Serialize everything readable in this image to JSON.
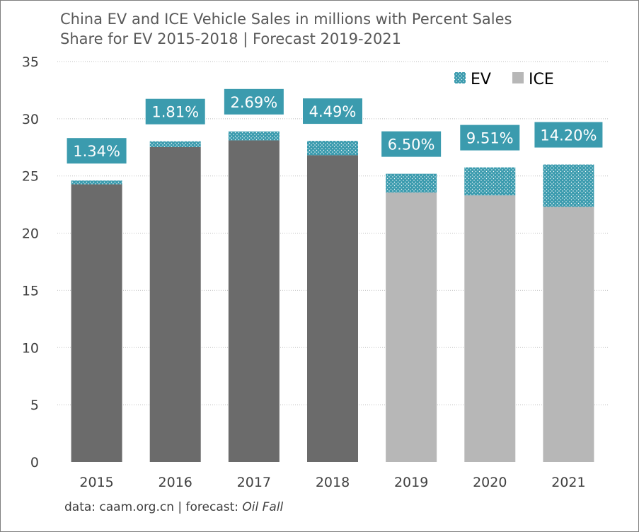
{
  "title": "China EV and ICE Vehicle Sales in millions with Percent Sales\nShare for EV 2015-2018 | Forecast 2019-2021",
  "source": {
    "prefix": "data: caam.org.cn | forecast: ",
    "name": "Oil Fall"
  },
  "colors": {
    "ev": "#3b9bae",
    "ice_actual": "#6b6b6b",
    "ice_forecast": "#b7b7b7",
    "label_bg": "#3b9bae",
    "grid": "#bfbfbf"
  },
  "chart_data": {
    "type": "bar",
    "stacked": true,
    "title": "China EV and ICE Vehicle Sales in millions with Percent Sales Share for EV 2015-2018 | Forecast 2019-2021",
    "xlabel": "",
    "ylabel": "",
    "categories": [
      "2015",
      "2016",
      "2017",
      "2018",
      "2019",
      "2020",
      "2021"
    ],
    "series": [
      {
        "name": "ICE",
        "values": [
          24.27,
          27.52,
          28.11,
          26.81,
          23.55,
          23.3,
          22.3
        ]
      },
      {
        "name": "EV",
        "values": [
          0.33,
          0.51,
          0.78,
          1.26,
          1.64,
          2.45,
          3.7
        ]
      }
    ],
    "forecast_categories": [
      "2019",
      "2020",
      "2021"
    ],
    "ev_share_labels": [
      "1.34%",
      "1.81%",
      "2.69%",
      "4.49%",
      "6.50%",
      "9.51%",
      "14.20%"
    ],
    "ylim": [
      0,
      35
    ],
    "yticks": [
      "0",
      "5",
      "10",
      "15",
      "20",
      "25",
      "30",
      "35"
    ],
    "grid": true,
    "legend_position": "top-right",
    "legend": [
      "EV",
      "ICE"
    ]
  }
}
